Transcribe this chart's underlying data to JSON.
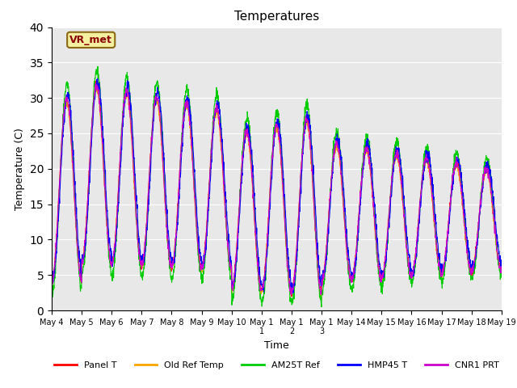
{
  "title": "Temperatures",
  "xlabel": "Time",
  "ylabel": "Temperature (C)",
  "ylim": [
    0,
    40
  ],
  "background_color": "#e8e8e8",
  "annotation_text": "VR_met",
  "series": [
    {
      "name": "Panel T",
      "color": "#ff0000"
    },
    {
      "name": "Old Ref Temp",
      "color": "#ffa500"
    },
    {
      "name": "AM25T Ref",
      "color": "#00cc00"
    },
    {
      "name": "HMP45 T",
      "color": "#0000ff"
    },
    {
      "name": "CNR1 PRT",
      "color": "#cc00cc"
    }
  ],
  "yticks": [
    0,
    5,
    10,
    15,
    20,
    25,
    30,
    35,
    40
  ],
  "tick_labels": [
    "May 4",
    "May 5",
    "May 6",
    "May 7",
    "May 8",
    "May 9",
    "May 10",
    "May 1\n1",
    "May 1\n2",
    "May 1\n3",
    "May 14",
    "May 15",
    "May 16",
    "May 17",
    "May 18",
    "May 19"
  ]
}
